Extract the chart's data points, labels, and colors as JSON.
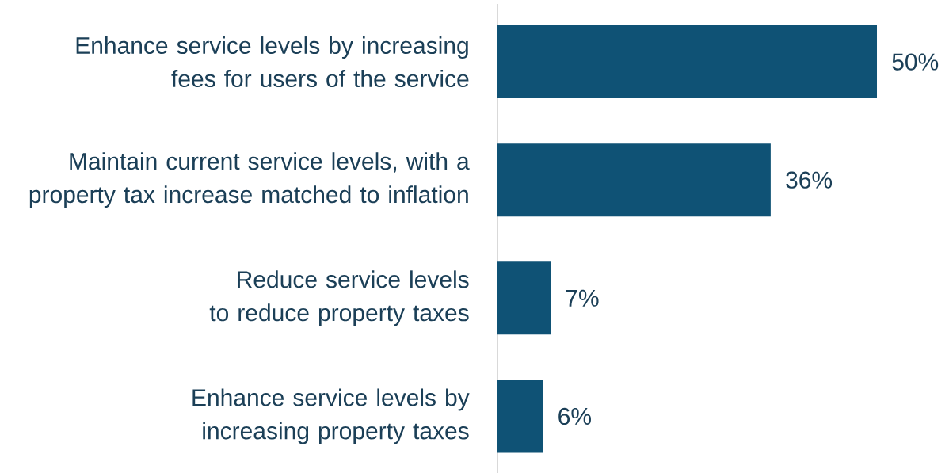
{
  "chart_data": {
    "type": "bar",
    "orientation": "horizontal",
    "categories": [
      "Enhance service levels by increasing fees for users of the service",
      "Maintain current service levels, with a property tax increase matched to inflation",
      "Reduce service levels to reduce property taxes",
      "Enhance service levels by increasing property taxes"
    ],
    "values": [
      50,
      36,
      7,
      6
    ],
    "color": "#0f5275",
    "value_labels": [
      "50%",
      "36%",
      "7%",
      "6%"
    ]
  }
}
